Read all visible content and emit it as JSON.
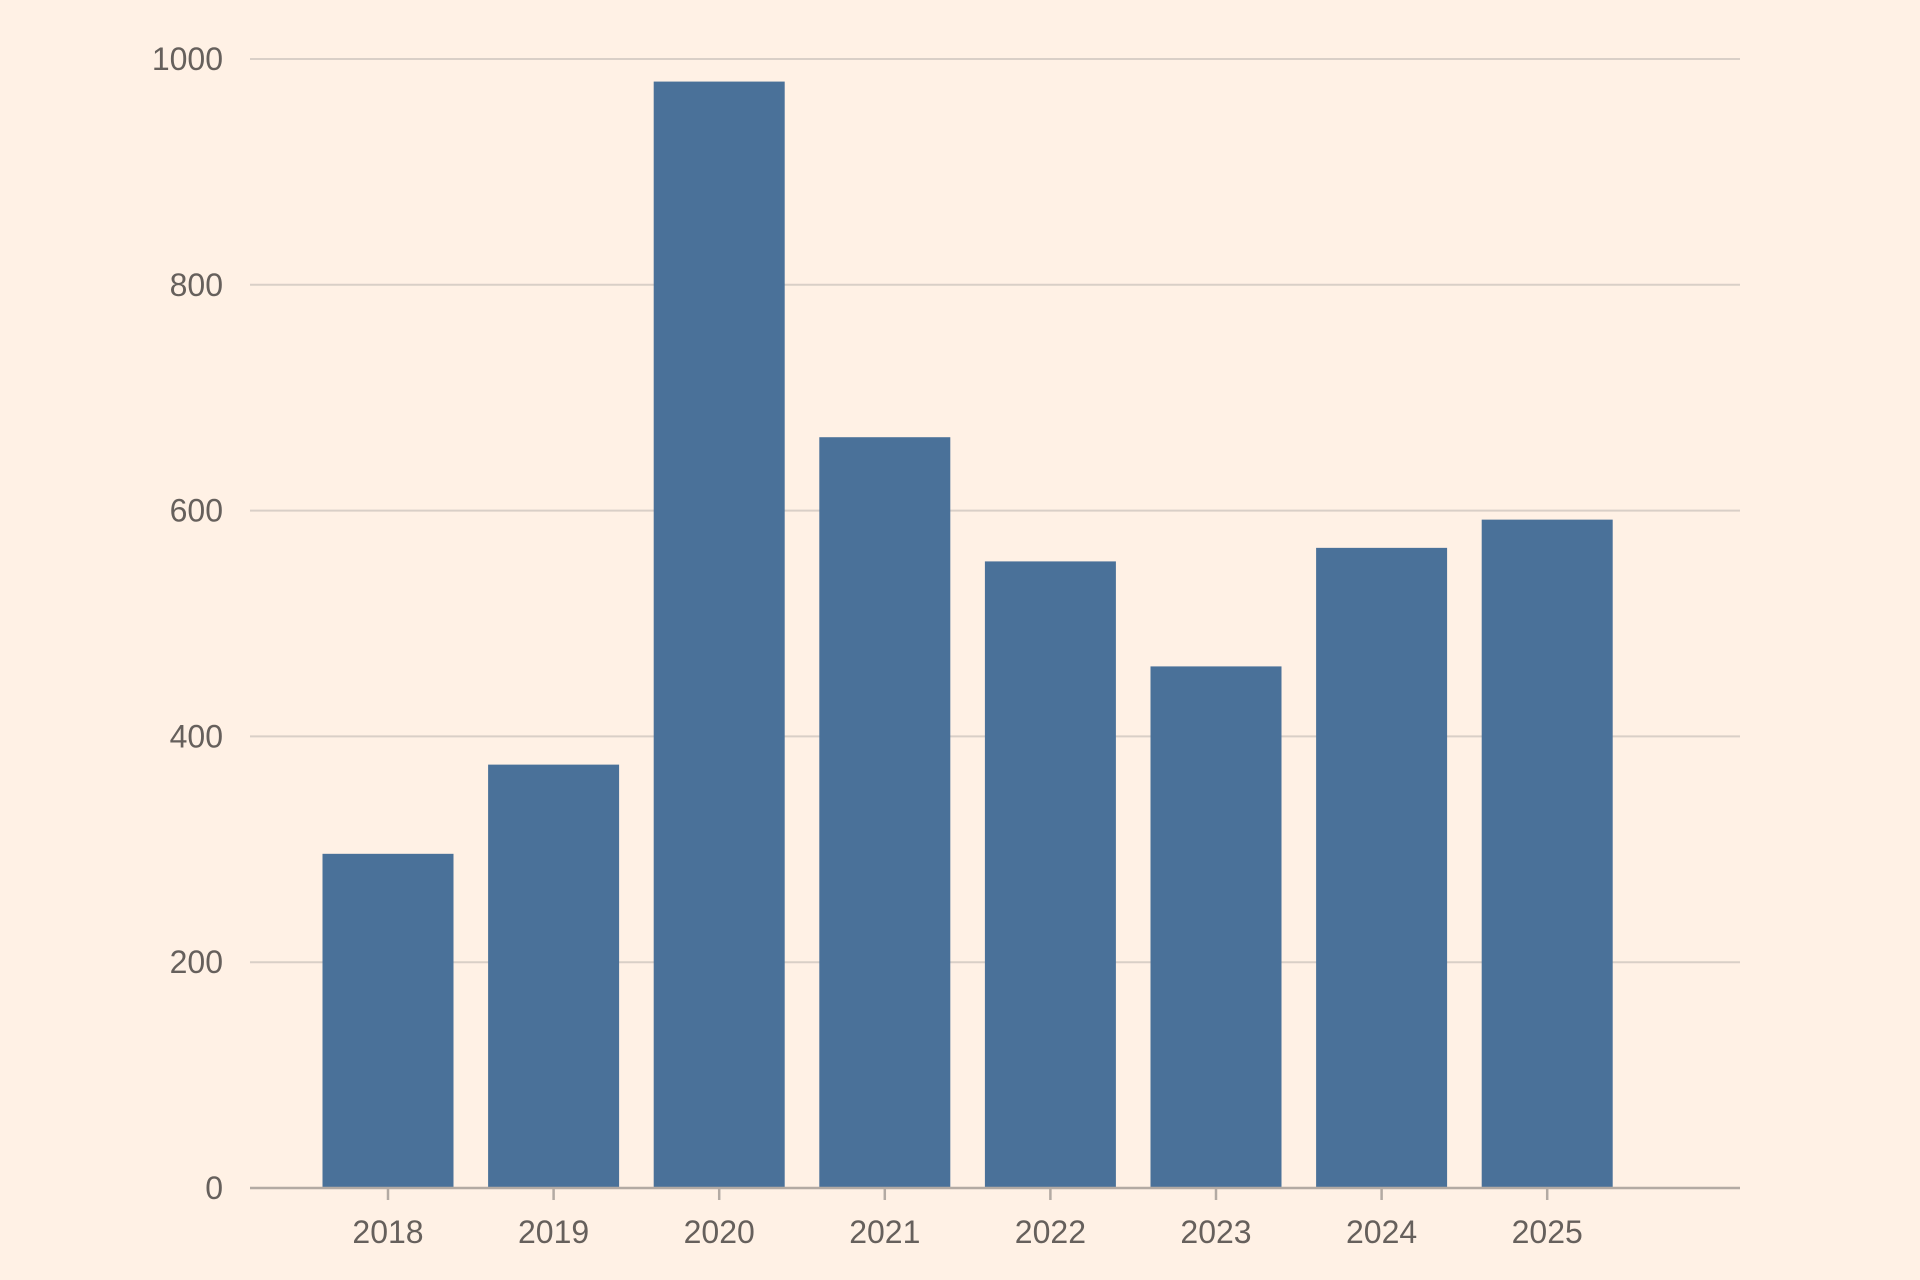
{
  "chart_data": {
    "type": "bar",
    "categories": [
      "2018",
      "2019",
      "2020",
      "2021",
      "2022",
      "2023",
      "2024",
      "2025"
    ],
    "values": [
      296,
      375,
      980,
      665,
      555,
      462,
      567,
      592
    ],
    "title": "",
    "xlabel": "",
    "ylabel": "",
    "ylim": [
      0,
      1000
    ],
    "yticks": [
      0,
      200,
      400,
      600,
      800,
      1000
    ],
    "grid": true,
    "legend": "none",
    "colors": {
      "bar": "#4a7199",
      "background": "#fff1e5",
      "grid": "#d9cfc7",
      "axis": "#b3aaa3",
      "text": "#66605c"
    }
  }
}
